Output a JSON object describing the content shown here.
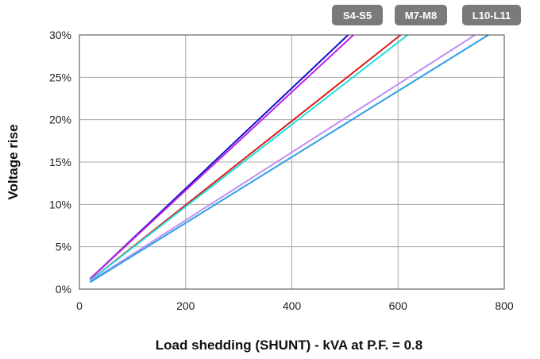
{
  "chart_data": {
    "type": "line",
    "title": "",
    "xlabel": "Load shedding (SHUNT) - kVA at P.F. = 0.8",
    "ylabel": "Voltage rise",
    "xlim": [
      0,
      800
    ],
    "ylim": [
      0,
      30
    ],
    "x_ticks": [
      "0",
      "200",
      "400",
      "600",
      "800"
    ],
    "y_ticks": [
      "0%",
      "5%",
      "10%",
      "15%",
      "20%",
      "25%",
      "30%"
    ],
    "grid": true,
    "legend_badges": [
      "S4-S5",
      "M7-M8",
      "L10-L11"
    ],
    "series": [
      {
        "color": "#1010d0",
        "x": [
          20,
          506
        ],
        "y": [
          1.2,
          30
        ]
      },
      {
        "color": "#c020e0",
        "x": [
          20,
          516
        ],
        "y": [
          1.2,
          30
        ]
      },
      {
        "color": "#e01818",
        "x": [
          20,
          605
        ],
        "y": [
          1.0,
          30
        ]
      },
      {
        "color": "#20e0e0",
        "x": [
          20,
          618
        ],
        "y": [
          1.0,
          30
        ]
      },
      {
        "color": "#c090f0",
        "x": [
          20,
          745
        ],
        "y": [
          0.9,
          30
        ]
      },
      {
        "color": "#2aa0e8",
        "x": [
          20,
          770
        ],
        "y": [
          0.8,
          30
        ]
      }
    ]
  }
}
